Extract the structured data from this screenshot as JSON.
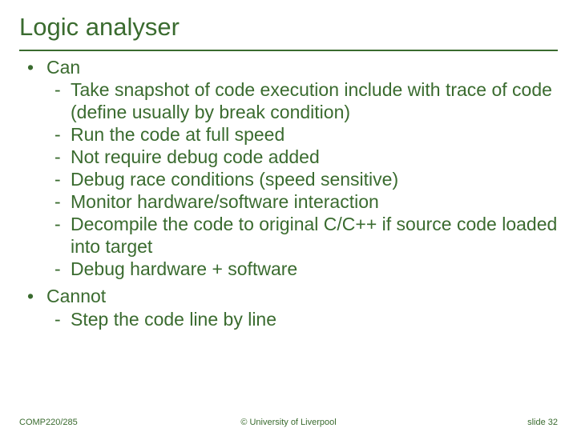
{
  "colors": {
    "text": "#3a6b2f",
    "underline": "#3a6b2f",
    "background": "#ffffff"
  },
  "typography": {
    "title_fontsize": 31,
    "body_fontsize": 23,
    "footer_fontsize": 11,
    "font_family": "Arial"
  },
  "title": "Logic analyser",
  "items": [
    {
      "label": "Can",
      "sub": [
        "Take snapshot of code execution include with trace of code (define usually by break condition)",
        "Run the code at full speed",
        "Not require debug code added",
        "Debug race conditions (speed sensitive)",
        "Monitor hardware/software interaction",
        "Decompile the code to original C/C++ if source code loaded into target",
        "Debug hardware + software"
      ]
    },
    {
      "label": "Cannot",
      "sub": [
        "Step the code line by line"
      ]
    }
  ],
  "footer": {
    "left": "COMP220/285",
    "center": "© University of Liverpool",
    "right": "slide  32"
  }
}
